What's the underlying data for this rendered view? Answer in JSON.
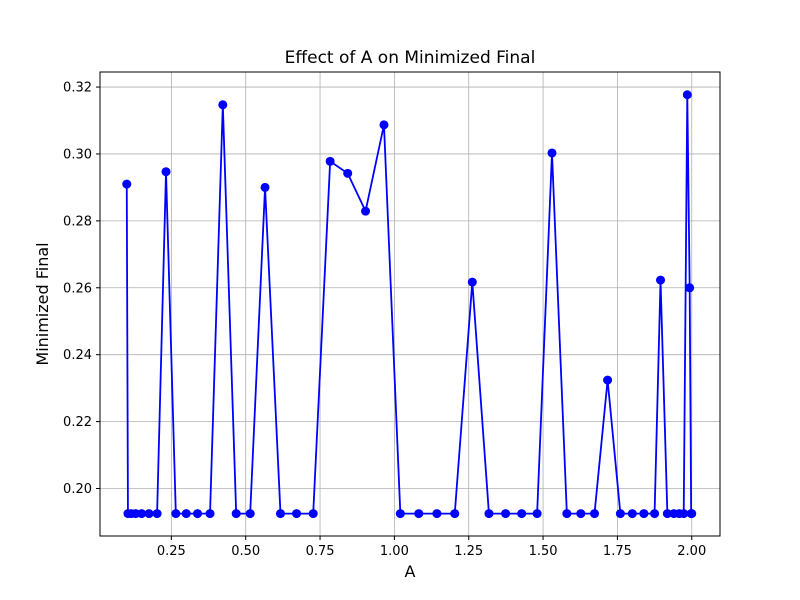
{
  "chart_data": {
    "type": "line",
    "title": "Effect of A on Minimized Final",
    "xlabel": "A",
    "ylabel": "Minimized Final",
    "xlim": [
      0.01,
      2.095
    ],
    "ylim": [
      0.1858,
      0.3245
    ],
    "xticks": [
      0.25,
      0.5,
      0.75,
      1.0,
      1.25,
      1.5,
      1.75,
      2.0
    ],
    "xtick_labels": [
      "0.25",
      "0.50",
      "0.75",
      "1.00",
      "1.25",
      "1.50",
      "1.75",
      "2.00"
    ],
    "yticks": [
      0.2,
      0.22,
      0.24,
      0.26,
      0.28,
      0.3,
      0.32
    ],
    "ytick_labels": [
      "0.20",
      "0.22",
      "0.24",
      "0.26",
      "0.28",
      "0.30",
      "0.32"
    ],
    "grid": true,
    "line_color": "#0000ff",
    "marker": "circle",
    "series": [
      {
        "x": [
          0.1,
          0.104,
          0.115,
          0.13,
          0.15,
          0.175,
          0.202,
          0.232,
          0.265,
          0.3,
          0.338,
          0.38,
          0.423,
          0.468,
          0.515,
          0.565,
          0.617,
          0.671,
          0.727,
          0.784,
          0.843,
          0.903,
          0.965,
          1.02,
          1.082,
          1.143,
          1.203,
          1.262,
          1.318,
          1.374,
          1.428,
          1.48,
          1.53,
          1.58,
          1.627,
          1.673,
          1.717,
          1.76,
          1.8,
          1.839,
          1.875,
          1.895,
          1.918,
          1.94,
          1.958,
          1.973,
          1.985,
          1.993,
          1.998,
          2.0
        ],
        "y": [
          0.291,
          0.1925,
          0.1925,
          0.1925,
          0.1925,
          0.1925,
          0.1925,
          0.2947,
          0.1925,
          0.1925,
          0.1925,
          0.1925,
          0.3147,
          0.1925,
          0.1925,
          0.29,
          0.1925,
          0.1925,
          0.1925,
          0.2978,
          0.2942,
          0.2829,
          0.3087,
          0.1925,
          0.1925,
          0.1925,
          0.1925,
          0.2617,
          0.1925,
          0.1925,
          0.1925,
          0.1925,
          0.3003,
          0.1925,
          0.1925,
          0.1925,
          0.2324,
          0.1925,
          0.1925,
          0.1925,
          0.1925,
          0.2623,
          0.1925,
          0.1925,
          0.1925,
          0.1925,
          0.3177,
          0.26,
          0.1925,
          0.1925
        ]
      }
    ]
  }
}
